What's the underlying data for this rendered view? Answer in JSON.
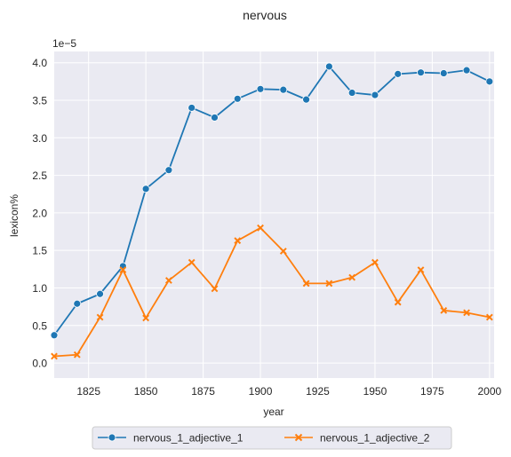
{
  "chart_data": {
    "type": "line",
    "title": "nervous",
    "xlabel": "year",
    "ylabel": "lexicon%",
    "y_scale_note": "1e−5",
    "xlim": [
      1810,
      2002
    ],
    "ylim": [
      -0.2,
      4.15
    ],
    "x_ticks": [
      1825,
      1850,
      1875,
      1900,
      1925,
      1950,
      1975,
      2000
    ],
    "y_ticks": [
      0.0,
      0.5,
      1.0,
      1.5,
      2.0,
      2.5,
      3.0,
      3.5,
      4.0
    ],
    "y_tick_labels": [
      "0.0",
      "0.5",
      "1.0",
      "1.5",
      "2.0",
      "2.5",
      "3.0",
      "3.5",
      "4.0"
    ],
    "grid": true,
    "legend_position": "bottom-center",
    "x": [
      1810,
      1820,
      1830,
      1840,
      1850,
      1860,
      1870,
      1880,
      1890,
      1900,
      1910,
      1920,
      1930,
      1940,
      1950,
      1960,
      1970,
      1980,
      1990,
      2000
    ],
    "series": [
      {
        "name": "nervous_1_adjective_1",
        "color": "#1f77b4",
        "marker": "circle",
        "values": [
          0.37,
          0.79,
          0.92,
          1.29,
          2.32,
          2.57,
          3.4,
          3.27,
          3.52,
          3.65,
          3.64,
          3.51,
          3.95,
          3.6,
          3.57,
          3.85,
          3.87,
          3.86,
          3.9,
          3.75
        ]
      },
      {
        "name": "nervous_1_adjective_2",
        "color": "#ff7f0e",
        "marker": "x",
        "values": [
          0.09,
          0.11,
          0.61,
          1.24,
          0.6,
          1.1,
          1.34,
          0.99,
          1.63,
          1.8,
          1.49,
          1.06,
          1.06,
          1.14,
          1.34,
          0.81,
          1.24,
          0.7,
          0.67,
          0.61
        ]
      }
    ]
  }
}
